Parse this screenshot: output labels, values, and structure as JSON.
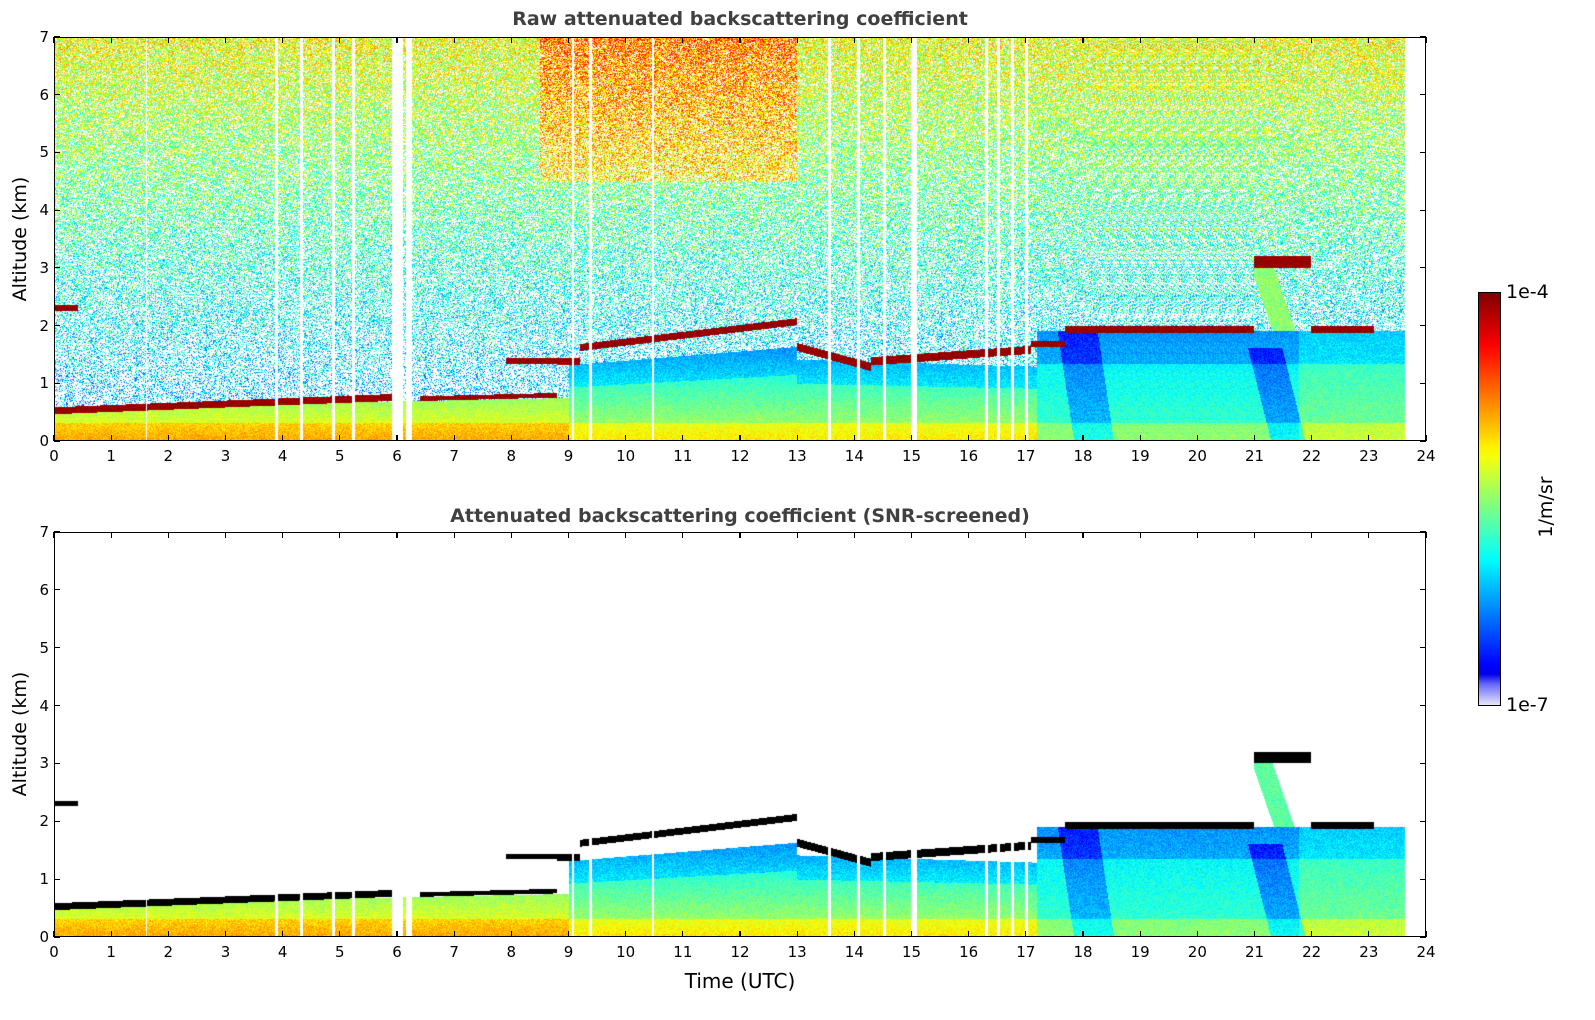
{
  "chart_data": [
    {
      "type": "heatmap",
      "id": "raw",
      "title": "Raw attenuated backscattering coefficient",
      "xlabel": "",
      "ylabel": "Altitude (km)",
      "xlim": [
        0,
        24
      ],
      "ylim": [
        0,
        7
      ],
      "xticks": [
        "0",
        "1",
        "2",
        "3",
        "4",
        "5",
        "6",
        "7",
        "8",
        "9",
        "10",
        "11",
        "12",
        "13",
        "14",
        "15",
        "16",
        "17",
        "18",
        "19",
        "20",
        "21",
        "22",
        "23",
        "24"
      ],
      "yticks": [
        "0",
        "1",
        "2",
        "3",
        "4",
        "5",
        "6",
        "7"
      ],
      "screened": false
    },
    {
      "type": "heatmap",
      "id": "screened",
      "title": "Attenuated backscattering coefficient (SNR-screened)",
      "xlabel": "Time (UTC)",
      "ylabel": "Altitude (km)",
      "xlim": [
        0,
        24
      ],
      "ylim": [
        0,
        7
      ],
      "xticks": [
        "0",
        "1",
        "2",
        "3",
        "4",
        "5",
        "6",
        "7",
        "8",
        "9",
        "10",
        "11",
        "12",
        "13",
        "14",
        "15",
        "16",
        "17",
        "18",
        "19",
        "20",
        "21",
        "22",
        "23",
        "24"
      ],
      "yticks": [
        "0",
        "1",
        "2",
        "3",
        "4",
        "5",
        "6",
        "7"
      ],
      "screened": true
    }
  ],
  "colorbar": {
    "label": "1/m/sr",
    "max_label": "1e-4",
    "min_label": "1e-7",
    "range": [
      1e-07,
      0.0001
    ],
    "scale": "log",
    "colormap": "jet"
  },
  "data_extent_hours": [
    0,
    23.65
  ],
  "cloud_layers": [
    {
      "t0": 0.0,
      "t1": 0.4,
      "base_km": 2.25,
      "top_km": 2.35
    },
    {
      "t0": 0.0,
      "t1": 5.9,
      "base_km_start": 0.45,
      "base_km_end": 0.68,
      "thickness_km": 0.12
    },
    {
      "t0": 6.4,
      "t1": 8.8,
      "base_km_start": 0.68,
      "base_km_end": 0.74,
      "thickness_km": 0.08
    },
    {
      "t0": 7.9,
      "t1": 8.8,
      "base_km": 1.33,
      "top_km": 1.42
    },
    {
      "t0": 8.8,
      "t1": 9.2,
      "base_km": 1.3,
      "top_km": 1.42
    },
    {
      "t0": 9.2,
      "t1": 13.0,
      "base_km_start": 1.55,
      "base_km_end": 2.0,
      "thickness_km": 0.12
    },
    {
      "t0": 13.0,
      "t1": 14.3,
      "base_km_start": 1.55,
      "base_km_end": 1.2,
      "thickness_km": 0.14
    },
    {
      "t0": 14.3,
      "t1": 17.1,
      "base_km_start": 1.3,
      "base_km_end": 1.5,
      "thickness_km": 0.14
    },
    {
      "t0": 17.1,
      "t1": 17.7,
      "base_km": 1.62,
      "top_km": 1.72
    },
    {
      "t0": 17.7,
      "t1": 21.0,
      "base_km": 1.86,
      "top_km": 1.98
    },
    {
      "t0": 21.0,
      "t1": 22.0,
      "base_km": 3.0,
      "top_km": 3.2
    },
    {
      "t0": 22.0,
      "t1": 23.1,
      "base_km": 1.86,
      "top_km": 1.98
    }
  ],
  "data_gaps_hours": [
    [
      1.6,
      1.62
    ],
    [
      3.85,
      3.9
    ],
    [
      4.3,
      4.35
    ],
    [
      4.85,
      4.9
    ],
    [
      5.2,
      5.25
    ],
    [
      5.9,
      6.1
    ],
    [
      6.15,
      6.25
    ],
    [
      9.05,
      9.1
    ],
    [
      9.35,
      9.4
    ],
    [
      10.45,
      10.5
    ],
    [
      13.55,
      13.6
    ],
    [
      14.05,
      14.1
    ],
    [
      14.5,
      14.55
    ],
    [
      15.0,
      15.1
    ],
    [
      16.3,
      16.35
    ],
    [
      16.5,
      16.55
    ],
    [
      16.75,
      16.8
    ],
    [
      17.0,
      17.05
    ]
  ]
}
